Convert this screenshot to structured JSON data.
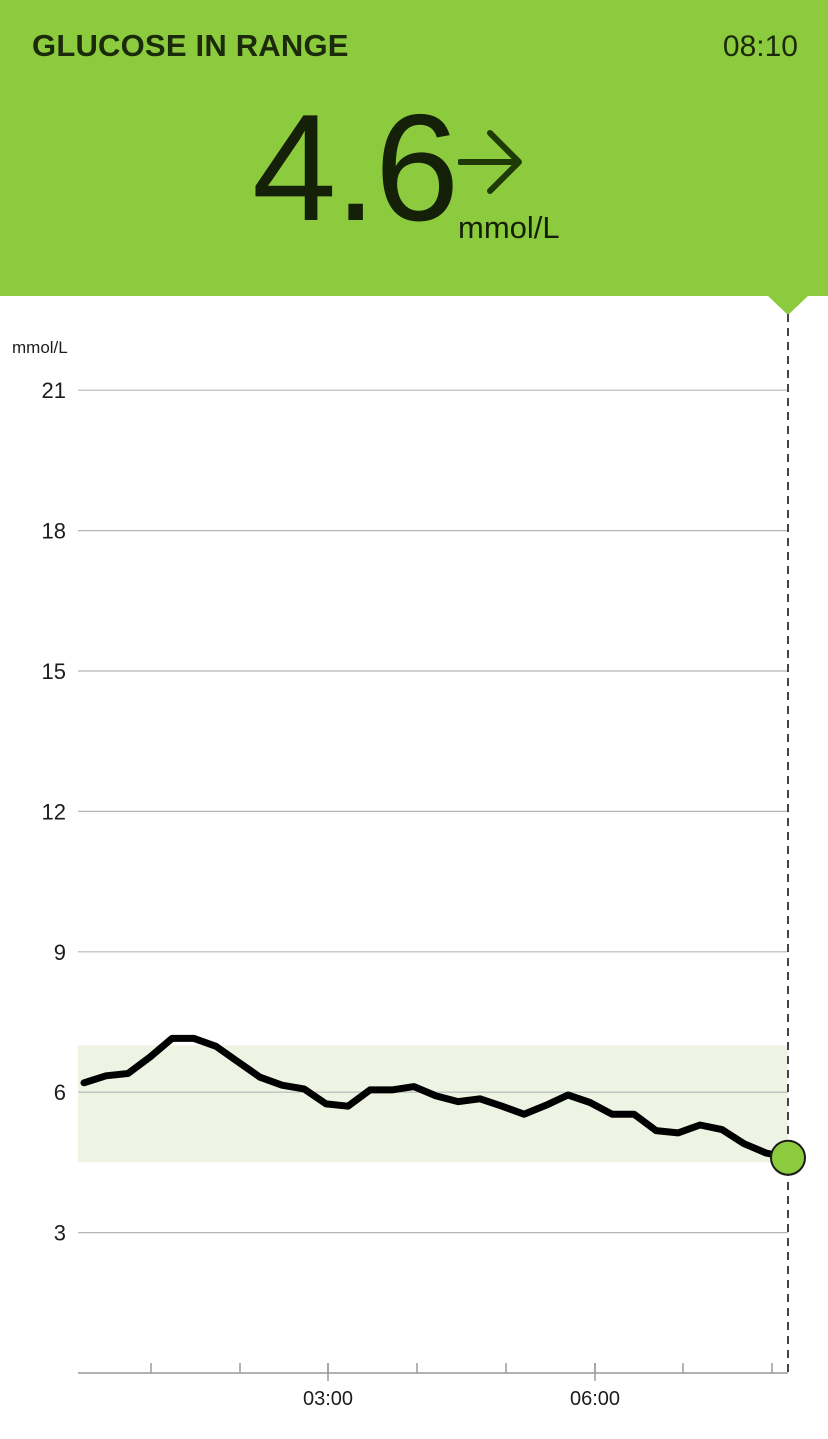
{
  "header": {
    "status_title": "GLUCOSE IN RANGE",
    "time": "08:10",
    "reading_value": "4.6",
    "reading_unit": "mmol/L",
    "trend_icon": "arrow-right-icon",
    "background_color": "#8dcb3e"
  },
  "chart_data": {
    "type": "line",
    "ylabel": "mmol/L",
    "ylim": [
      0,
      21
    ],
    "y_ticks": [
      3,
      6,
      9,
      12,
      15,
      18,
      21
    ],
    "x_tick_labels": [
      "03:00",
      "06:00"
    ],
    "target_range": [
      4.5,
      7.0
    ],
    "target_range_color": "#edf4e4",
    "line_color": "#000000",
    "current_marker_color": "#8dcb3e",
    "series": [
      {
        "values": [
          6.2,
          6.35,
          6.4,
          6.75,
          7.15,
          7.15,
          6.98,
          6.65,
          6.32,
          6.15,
          6.07,
          5.75,
          5.7,
          6.05,
          6.05,
          6.12,
          5.92,
          5.8,
          5.86,
          5.7,
          5.53,
          5.72,
          5.94,
          5.78,
          5.53,
          5.53,
          5.18,
          5.13,
          5.3,
          5.2,
          4.9,
          4.7,
          4.6
        ]
      }
    ]
  }
}
